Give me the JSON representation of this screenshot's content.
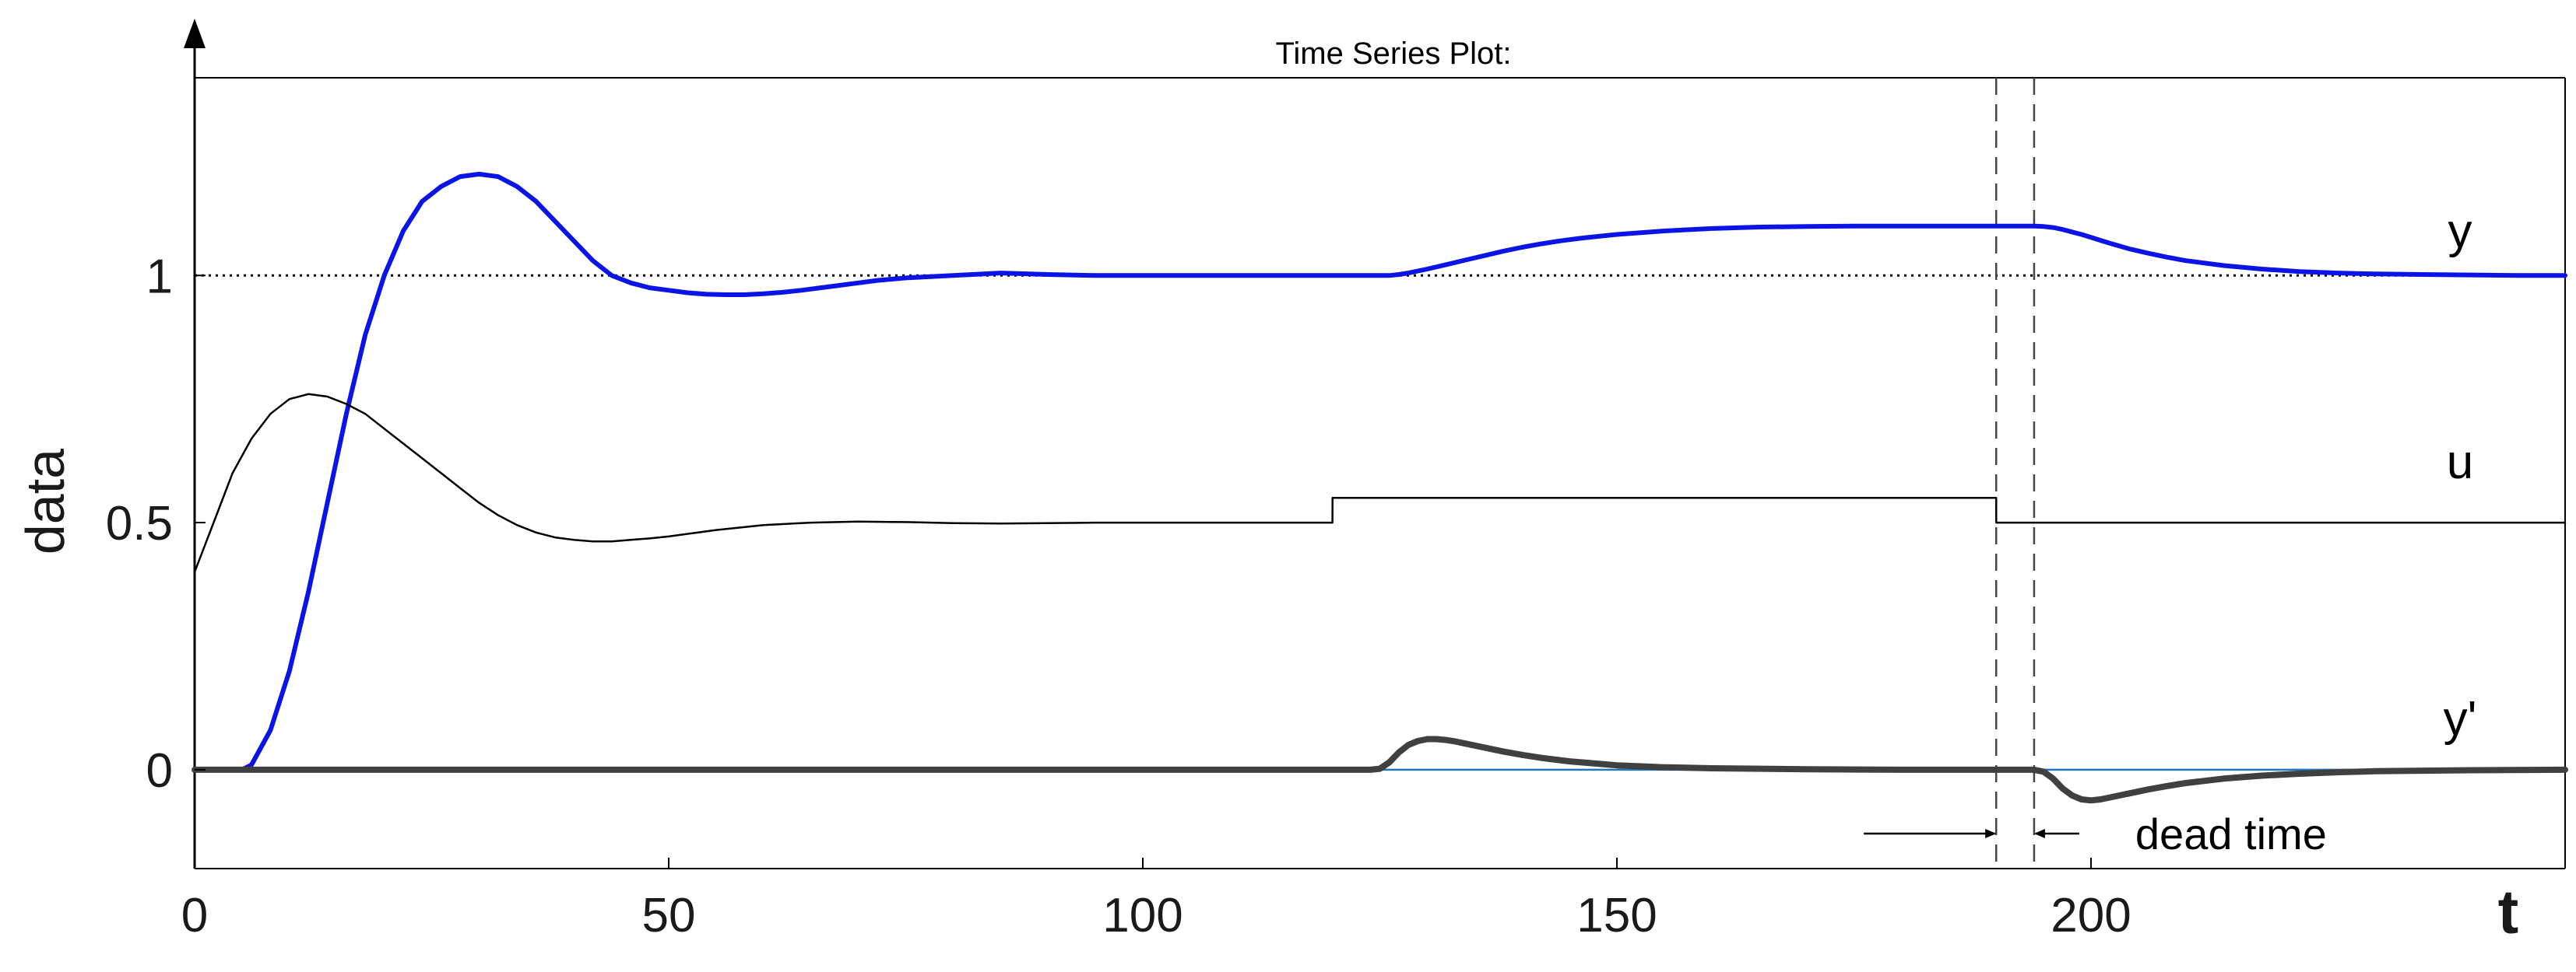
{
  "chart_data": {
    "type": "line",
    "title": "Time Series Plot:",
    "xlabel": "t",
    "ylabel": "data",
    "xlim": [
      0,
      250
    ],
    "ylim": [
      -0.2,
      1.4
    ],
    "xticks": [
      0,
      50,
      100,
      150,
      200
    ],
    "yticks": [
      0,
      0.5,
      1
    ],
    "grid": false,
    "series": [
      {
        "name": "y",
        "color": "#0a14e6",
        "x": [
          0,
          5,
          6,
          8,
          10,
          12,
          14,
          16,
          18,
          20,
          22,
          24,
          26,
          28,
          30,
          32,
          34,
          36,
          38,
          40,
          42,
          44,
          46,
          48,
          50,
          52,
          54,
          56,
          58,
          60,
          62,
          64,
          66,
          68,
          70,
          72,
          75,
          80,
          85,
          90,
          95,
          100,
          105,
          110,
          115,
          120,
          122,
          124,
          125,
          126,
          127,
          128,
          130,
          132,
          134,
          136,
          138,
          140,
          142,
          144,
          146,
          148,
          150,
          155,
          160,
          165,
          170,
          175,
          180,
          185,
          190,
          192,
          193,
          194,
          195,
          196,
          197,
          198,
          199,
          200,
          201,
          202,
          204,
          206,
          208,
          210,
          214,
          218,
          222,
          226,
          230,
          235,
          240,
          245,
          250
        ],
        "values": [
          0,
          0,
          0.01,
          0.08,
          0.2,
          0.36,
          0.54,
          0.72,
          0.88,
          1.0,
          1.09,
          1.15,
          1.18,
          1.2,
          1.205,
          1.2,
          1.18,
          1.15,
          1.11,
          1.07,
          1.03,
          1.0,
          0.985,
          0.975,
          0.97,
          0.965,
          0.962,
          0.961,
          0.961,
          0.963,
          0.966,
          0.97,
          0.975,
          0.98,
          0.985,
          0.99,
          0.995,
          1.0,
          1.005,
          1.002,
          1.0,
          1.0,
          1.0,
          1.0,
          1.0,
          1.0,
          1.0,
          1.0,
          1.0,
          1.0,
          1.002,
          1.005,
          1.013,
          1.022,
          1.031,
          1.04,
          1.049,
          1.057,
          1.064,
          1.07,
          1.075,
          1.079,
          1.083,
          1.09,
          1.095,
          1.098,
          1.099,
          1.1,
          1.1,
          1.1,
          1.1,
          1.1,
          1.1,
          1.1,
          1.099,
          1.097,
          1.093,
          1.088,
          1.083,
          1.077,
          1.071,
          1.065,
          1.054,
          1.045,
          1.037,
          1.03,
          1.02,
          1.013,
          1.008,
          1.005,
          1.003,
          1.002,
          1.001,
          1.0,
          1.0
        ]
      },
      {
        "name": "u",
        "color": "#000000",
        "x": [
          0,
          2,
          4,
          6,
          8,
          10,
          12,
          14,
          16,
          18,
          20,
          22,
          24,
          26,
          28,
          30,
          32,
          34,
          36,
          38,
          40,
          42,
          44,
          46,
          48,
          50,
          55,
          60,
          65,
          70,
          75,
          80,
          85,
          90,
          95,
          100,
          105,
          110,
          115,
          120,
          120.01,
          130,
          140,
          150,
          160,
          170,
          180,
          190,
          190.01,
          200,
          210,
          220,
          230,
          240,
          250
        ],
        "values": [
          0.4,
          0.5,
          0.6,
          0.67,
          0.72,
          0.75,
          0.76,
          0.755,
          0.74,
          0.72,
          0.69,
          0.66,
          0.63,
          0.6,
          0.57,
          0.54,
          0.515,
          0.495,
          0.48,
          0.47,
          0.465,
          0.462,
          0.462,
          0.465,
          0.468,
          0.472,
          0.485,
          0.495,
          0.5,
          0.502,
          0.501,
          0.499,
          0.498,
          0.499,
          0.5,
          0.5,
          0.5,
          0.5,
          0.5,
          0.5,
          0.55,
          0.55,
          0.55,
          0.55,
          0.55,
          0.55,
          0.55,
          0.55,
          0.5,
          0.5,
          0.5,
          0.5,
          0.5,
          0.5,
          0.5
        ]
      },
      {
        "name": "y'",
        "color": "#404040",
        "x": [
          0,
          120,
          124,
          125,
          126,
          127,
          128,
          129,
          130,
          131,
          132,
          133,
          134,
          136,
          138,
          140,
          142,
          145,
          150,
          155,
          160,
          170,
          180,
          190,
          194,
          195,
          196,
          197,
          198,
          199,
          200,
          201,
          202,
          204,
          206,
          208,
          210,
          214,
          218,
          222,
          226,
          230,
          235,
          240,
          250
        ],
        "values": [
          0,
          0,
          0,
          0.002,
          0.015,
          0.035,
          0.05,
          0.058,
          0.062,
          0.062,
          0.06,
          0.057,
          0.053,
          0.045,
          0.037,
          0.03,
          0.024,
          0.017,
          0.009,
          0.005,
          0.003,
          0.001,
          0,
          0,
          0,
          -0.004,
          -0.018,
          -0.038,
          -0.052,
          -0.06,
          -0.062,
          -0.06,
          -0.056,
          -0.048,
          -0.04,
          -0.033,
          -0.027,
          -0.018,
          -0.012,
          -0.008,
          -0.005,
          -0.003,
          -0.002,
          -0.001,
          0
        ]
      }
    ],
    "reference_lines": [
      {
        "kind": "horizontal",
        "y": 1,
        "style": "dotted",
        "color": "#000000"
      },
      {
        "kind": "horizontal",
        "y": 0,
        "style": "solid",
        "color": "#1f77c0"
      },
      {
        "kind": "vertical",
        "x": 190,
        "style": "dashed",
        "color": "#444444"
      },
      {
        "kind": "vertical",
        "x": 194,
        "style": "dashed",
        "color": "#444444"
      }
    ],
    "series_labels": [
      {
        "text": "y",
        "x": 240,
        "y": 1.1
      },
      {
        "text": "u",
        "x": 240,
        "y": 0.6
      },
      {
        "text": "y'",
        "x": 240,
        "y": 0.1
      }
    ],
    "annotations": [
      {
        "text": "dead time",
        "x_from": 190,
        "x_to": 194,
        "y": -0.14
      }
    ]
  }
}
